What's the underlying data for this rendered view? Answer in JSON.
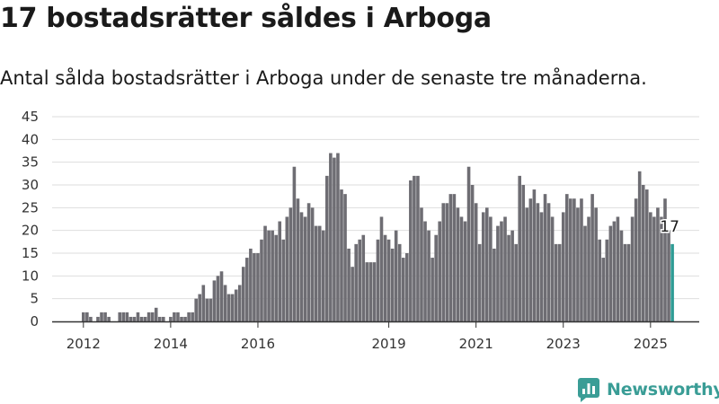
{
  "title": "17 bostadsrätter såldes i Arboga",
  "subtitle": "Antal sålda bostadsrätter i Arboga under de senaste tre månaderna.",
  "brand": {
    "name": "Newsworthy",
    "color": "#3a9d96"
  },
  "chart_data": {
    "type": "bar",
    "title": "17 bostadsrätter såldes i Arboga",
    "subtitle": "Antal sålda bostadsrätter i Arboga under de senaste tre månaderna.",
    "xlabel": "",
    "ylabel": "",
    "ylim": [
      0,
      45
    ],
    "yticks": [
      0,
      5,
      10,
      15,
      20,
      25,
      30,
      35,
      40,
      45
    ],
    "xticks": [
      "2012",
      "2014",
      "2016",
      "2019",
      "2021",
      "2023",
      "2025"
    ],
    "grid": true,
    "x_start": "2012-01",
    "x_end": "2025-06",
    "bar_color": "#6e6d73",
    "highlight_color": "#2f9c95",
    "highlight_label": "17",
    "values": [
      2,
      2,
      1,
      0,
      1,
      2,
      2,
      1,
      0,
      0,
      2,
      2,
      2,
      1,
      1,
      2,
      1,
      1,
      2,
      2,
      3,
      1,
      1,
      0,
      1,
      2,
      2,
      1,
      1,
      2,
      2,
      5,
      6,
      8,
      5,
      5,
      9,
      10,
      11,
      8,
      6,
      6,
      7,
      8,
      12,
      14,
      16,
      15,
      15,
      18,
      21,
      20,
      20,
      19,
      22,
      18,
      23,
      25,
      34,
      27,
      24,
      23,
      26,
      25,
      21,
      21,
      20,
      32,
      37,
      36,
      37,
      29,
      28,
      16,
      12,
      17,
      18,
      19,
      13,
      13,
      13,
      18,
      23,
      19,
      18,
      16,
      20,
      17,
      14,
      15,
      31,
      32,
      32,
      25,
      22,
      20,
      14,
      19,
      22,
      26,
      26,
      28,
      28,
      25,
      23,
      22,
      34,
      30,
      26,
      17,
      24,
      25,
      23,
      16,
      21,
      22,
      23,
      19,
      20,
      17,
      32,
      30,
      25,
      27,
      29,
      26,
      24,
      28,
      26,
      23,
      17,
      17,
      24,
      28,
      27,
      27,
      25,
      27,
      21,
      23,
      28,
      25,
      18,
      14,
      18,
      21,
      22,
      23,
      20,
      17,
      17,
      23,
      27,
      33,
      30,
      29,
      24,
      23,
      25,
      23,
      27,
      20,
      17
    ]
  }
}
